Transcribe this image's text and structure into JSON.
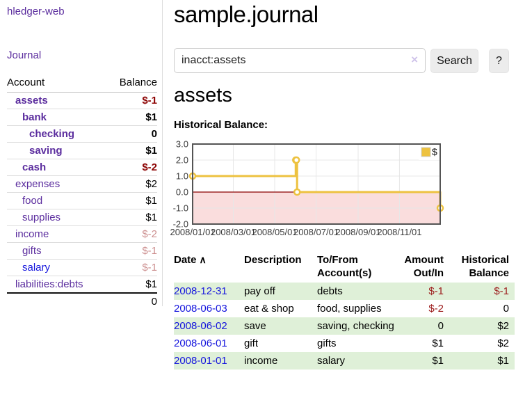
{
  "app": {
    "brand": "hledger-web",
    "nav_journal": "Journal"
  },
  "colors": {
    "purple_link": "#5b2d9e",
    "blue_link": "#1414dd",
    "negative_strong": "#8b0000",
    "negative_dim": "rgba(139,0,0,0.45)",
    "negative_table": "#9b1a1a",
    "row_shade_green": "#dff0d8",
    "series_gold": "#edc240"
  },
  "sidebar": {
    "header": {
      "account": "Account",
      "balance": "Balance"
    },
    "accounts": [
      {
        "name": "assets",
        "depth": 1,
        "balance": "$-1",
        "bold": true,
        "neg": "strong",
        "link": "purple"
      },
      {
        "name": "bank",
        "depth": 2,
        "balance": "$1",
        "bold": true,
        "neg": "none",
        "link": "purple"
      },
      {
        "name": "checking",
        "depth": 3,
        "balance": "0",
        "bold": true,
        "neg": "none",
        "link": "purple"
      },
      {
        "name": "saving",
        "depth": 3,
        "balance": "$1",
        "bold": true,
        "neg": "none",
        "link": "purple"
      },
      {
        "name": "cash",
        "depth": 2,
        "balance": "$-2",
        "bold": true,
        "neg": "strong",
        "link": "purple"
      },
      {
        "name": "expenses",
        "depth": 1,
        "balance": "$2",
        "bold": false,
        "neg": "none",
        "link": "purple"
      },
      {
        "name": "food",
        "depth": 2,
        "balance": "$1",
        "bold": false,
        "neg": "none",
        "link": "purple"
      },
      {
        "name": "supplies",
        "depth": 2,
        "balance": "$1",
        "bold": false,
        "neg": "none",
        "link": "purple"
      },
      {
        "name": "income",
        "depth": 1,
        "balance": "$-2",
        "bold": false,
        "neg": "dim",
        "link": "purple"
      },
      {
        "name": "gifts",
        "depth": 2,
        "balance": "$-1",
        "bold": false,
        "neg": "dim",
        "link": "purple"
      },
      {
        "name": "salary",
        "depth": 2,
        "balance": "$-1",
        "bold": false,
        "neg": "dim",
        "link": "blue"
      },
      {
        "name": "liabilities:debts",
        "depth": 1,
        "balance": "$1",
        "bold": false,
        "neg": "none",
        "link": "purple"
      }
    ],
    "total": "0"
  },
  "main": {
    "title": "sample.journal",
    "search": {
      "value": "inacct:assets",
      "clear_icon": "×",
      "button_label": "Search",
      "help_label": "?"
    },
    "account_heading": "assets",
    "chart_heading": "Historical Balance:"
  },
  "chart_data": {
    "type": "line",
    "steps": true,
    "title": "Historical Balance:",
    "series": [
      {
        "name": "$",
        "color": "#edc240",
        "points": [
          [
            "2008-01-01",
            1
          ],
          [
            "2008-06-01",
            2
          ],
          [
            "2008-06-02",
            2
          ],
          [
            "2008-06-03",
            0
          ],
          [
            "2008-12-31",
            -1
          ]
        ]
      }
    ],
    "ylim": [
      -2,
      3
    ],
    "yticks": [
      3.0,
      2.0,
      1.0,
      0.0,
      -1.0,
      -2.0
    ],
    "xticks": [
      "2008/01/01",
      "2008/03/01",
      "2008/05/01",
      "2008/07/01",
      "2008/09/01",
      "2008/11/01"
    ],
    "xrange": [
      "2008-01-01",
      "2008-12-31"
    ],
    "grid": true,
    "grid_color": "#e7e7e7",
    "border_color": "#545454",
    "negative_region_color": "#fadddd",
    "zero_line_color": "#8b0000",
    "legend": {
      "label": "$",
      "position": "top-right"
    }
  },
  "register": {
    "headers": {
      "date": "Date",
      "sort_icon": "∧",
      "description": "Description",
      "accounts": "To/From Account(s)",
      "amount": "Amount Out/In",
      "balance": "Historical Balance"
    },
    "rows": [
      {
        "date": "2008-12-31",
        "description": "pay off",
        "accounts": "debts",
        "amount": "$-1",
        "amount_neg": true,
        "balance": "$-1",
        "balance_neg": true,
        "shaded": true
      },
      {
        "date": "2008-06-03",
        "description": "eat & shop",
        "accounts": "food, supplies",
        "amount": "$-2",
        "amount_neg": true,
        "balance": "0",
        "balance_neg": false,
        "shaded": false
      },
      {
        "date": "2008-06-02",
        "description": "save",
        "accounts": "saving, checking",
        "amount": "0",
        "amount_neg": false,
        "balance": "$2",
        "balance_neg": false,
        "shaded": true
      },
      {
        "date": "2008-06-01",
        "description": "gift",
        "accounts": "gifts",
        "amount": "$1",
        "amount_neg": false,
        "balance": "$2",
        "balance_neg": false,
        "shaded": false
      },
      {
        "date": "2008-01-01",
        "description": "income",
        "accounts": "salary",
        "amount": "$1",
        "amount_neg": false,
        "balance": "$1",
        "balance_neg": false,
        "shaded": true
      }
    ]
  }
}
